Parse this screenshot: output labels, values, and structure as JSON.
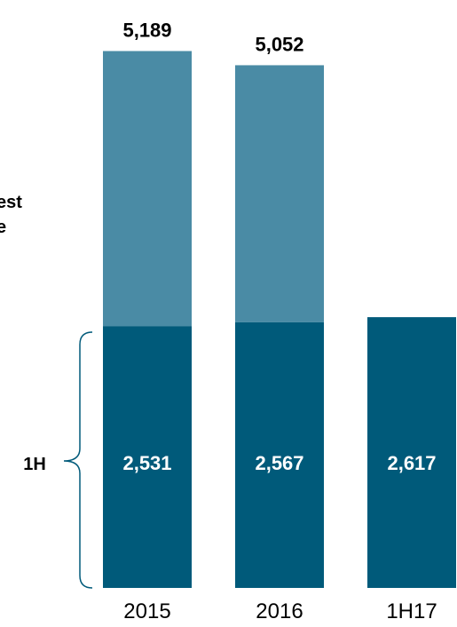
{
  "chart_data": {
    "type": "bar",
    "stacked": true,
    "categories": [
      "2015",
      "2016",
      "1H17"
    ],
    "series": [
      {
        "values": [
          2531,
          2567,
          2617
        ],
        "color": "#005a7a"
      },
      {
        "values": [
          2658,
          2485,
          null
        ],
        "color": "#4a8ba5"
      }
    ],
    "totals": [
      5189,
      5052,
      null
    ],
    "segment_labels": [
      "2,531",
      "2,567",
      "2,617"
    ],
    "total_labels": [
      "5,189",
      "5,052",
      ""
    ],
    "side_labels": {
      "first_half": "1H",
      "rest_partial": "est\ne"
    },
    "ylim": [
      0,
      5189
    ],
    "grid": false,
    "legend": "none"
  }
}
